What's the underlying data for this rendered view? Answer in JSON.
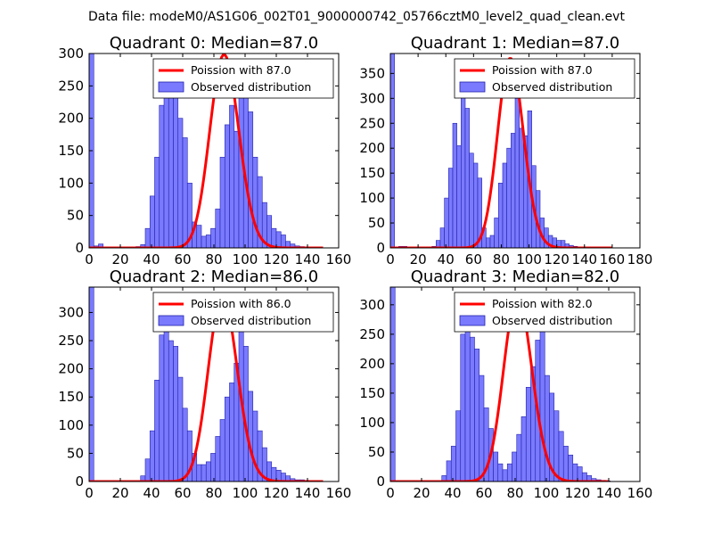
{
  "figure_title": "Data file: modeM0/AS1G06_002T01_9000000742_05766cztM0_level2_quad_clean.evt",
  "chart_data": [
    {
      "type": "bar",
      "title": "Quadrant 0: Median=87.0",
      "xlim": [
        0,
        160
      ],
      "ylim": [
        0,
        300
      ],
      "xticks": [
        0,
        20,
        40,
        60,
        80,
        100,
        120,
        140,
        160
      ],
      "yticks": [
        0,
        50,
        100,
        150,
        200,
        250,
        300
      ],
      "bin_width": 3,
      "bin_start": 0,
      "hist_values": [
        300,
        3,
        6,
        0,
        0,
        0,
        0,
        0,
        0,
        0,
        2,
        5,
        30,
        80,
        140,
        220,
        290,
        240,
        260,
        200,
        170,
        100,
        40,
        35,
        18,
        20,
        30,
        60,
        140,
        190,
        220,
        180,
        260,
        240,
        210,
        140,
        110,
        70,
        50,
        30,
        25,
        20,
        10,
        6,
        3,
        2,
        1,
        0,
        0,
        0,
        0,
        0,
        0,
        0
      ],
      "poisson_mean": 87.0,
      "poisson_peak": 298,
      "poisson_xmax": 150,
      "legend": {
        "line_label": "Poission with 87.0",
        "bar_label": "Observed distribution",
        "loc": "upper right"
      },
      "colors": {
        "bar": "#7a7aff",
        "bar_edge": "#2222aa",
        "line": "#ff0000"
      }
    },
    {
      "type": "bar",
      "title": "Quadrant 1: Median=87.0",
      "xlim": [
        0,
        180
      ],
      "ylim": [
        0,
        390
      ],
      "xticks": [
        0,
        20,
        40,
        60,
        80,
        100,
        120,
        140,
        160,
        180
      ],
      "yticks": [
        0,
        50,
        100,
        150,
        200,
        250,
        300,
        350
      ],
      "bin_width": 3,
      "bin_start": 0,
      "hist_values": [
        390,
        2,
        3,
        3,
        0,
        0,
        0,
        0,
        0,
        0,
        3,
        15,
        40,
        100,
        160,
        250,
        205,
        315,
        280,
        190,
        170,
        140,
        40,
        20,
        25,
        60,
        130,
        170,
        200,
        230,
        300,
        240,
        225,
        275,
        165,
        115,
        60,
        40,
        25,
        20,
        15,
        15,
        8,
        5,
        3,
        1,
        0,
        0,
        0,
        0,
        0,
        0,
        0,
        0,
        0,
        0,
        0,
        0,
        0,
        0
      ],
      "poisson_mean": 87.0,
      "poisson_peak": 380,
      "poisson_xmax": 160,
      "legend": {
        "line_label": "Poission with 87.0",
        "bar_label": "Observed distribution",
        "loc": "upper right"
      },
      "colors": {
        "bar": "#7a7aff",
        "bar_edge": "#2222aa",
        "line": "#ff0000"
      }
    },
    {
      "type": "bar",
      "title": "Quadrant 2: Median=86.0",
      "xlim": [
        0,
        160
      ],
      "ylim": [
        0,
        345
      ],
      "xticks": [
        0,
        20,
        40,
        60,
        80,
        100,
        120,
        140,
        160
      ],
      "yticks": [
        0,
        50,
        100,
        150,
        200,
        250,
        300
      ],
      "bin_width": 3,
      "bin_start": 0,
      "hist_values": [
        345,
        0,
        0,
        0,
        0,
        0,
        0,
        0,
        0,
        0,
        0,
        10,
        40,
        90,
        180,
        260,
        300,
        250,
        240,
        185,
        130,
        90,
        50,
        30,
        30,
        35,
        50,
        80,
        110,
        150,
        175,
        210,
        300,
        240,
        160,
        125,
        90,
        60,
        35,
        25,
        20,
        15,
        10,
        5,
        3,
        3,
        2,
        0,
        0,
        0,
        0,
        0
      ],
      "poisson_mean": 86.0,
      "poisson_peak": 330,
      "poisson_xmax": 150,
      "legend": {
        "line_label": "Poission with 86.0",
        "bar_label": "Observed distribution",
        "loc": "upper right"
      },
      "colors": {
        "bar": "#7a7aff",
        "bar_edge": "#2222aa",
        "line": "#ff0000"
      }
    },
    {
      "type": "bar",
      "title": "Quadrant 3: Median=82.0",
      "xlim": [
        0,
        160
      ],
      "ylim": [
        0,
        330
      ],
      "xticks": [
        0,
        20,
        40,
        60,
        80,
        100,
        120,
        140,
        160
      ],
      "yticks": [
        0,
        50,
        100,
        150,
        200,
        250,
        300
      ],
      "bin_width": 3,
      "bin_start": 0,
      "hist_values": [
        330,
        0,
        0,
        0,
        0,
        0,
        0,
        0,
        0,
        0,
        0,
        10,
        35,
        60,
        120,
        250,
        310,
        245,
        225,
        180,
        125,
        90,
        50,
        30,
        20,
        30,
        50,
        80,
        110,
        160,
        195,
        240,
        260,
        180,
        150,
        120,
        85,
        60,
        45,
        30,
        25,
        15,
        10,
        5,
        3,
        2,
        1,
        0,
        0,
        0,
        0,
        0,
        0
      ],
      "poisson_mean": 82.0,
      "poisson_peak": 315,
      "poisson_xmax": 140,
      "legend": {
        "line_label": "Poission with 82.0",
        "bar_label": "Observed distribution",
        "loc": "upper right"
      },
      "colors": {
        "bar": "#7a7aff",
        "bar_edge": "#2222aa",
        "line": "#ff0000"
      }
    }
  ]
}
